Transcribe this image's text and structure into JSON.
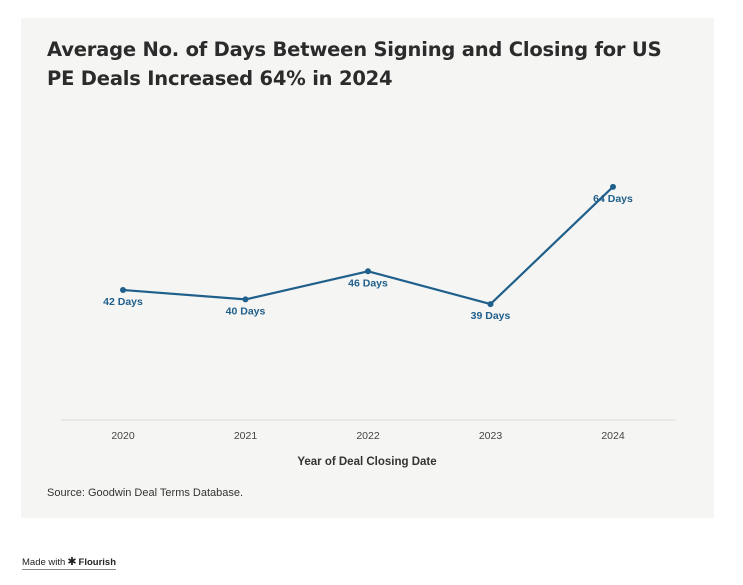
{
  "chart_data": {
    "type": "line",
    "title": "Average No. of Days Between Signing and Closing for US PE Deals Increased 64% in 2024",
    "xlabel": "Year of Deal Closing Date",
    "ylabel": "",
    "categories": [
      "2020",
      "2021",
      "2022",
      "2023",
      "2024"
    ],
    "series": [
      {
        "name": "Average days between signing and closing",
        "values": [
          42,
          40,
          46,
          39,
          64
        ],
        "labels": [
          "42 Days",
          "40 Days",
          "46 Days",
          "39 Days",
          "64 Days"
        ]
      }
    ],
    "ylim": [
      0,
      100
    ],
    "grid": false,
    "line_color": "#1f5f8b"
  },
  "source": "Source: Goodwin Deal Terms Database.",
  "footer": {
    "made_with": "Made with",
    "brand": "Flourish"
  },
  "colors": {
    "background": "#f5f5f3",
    "line": "#1f5f8b",
    "axis_text": "#444444"
  }
}
